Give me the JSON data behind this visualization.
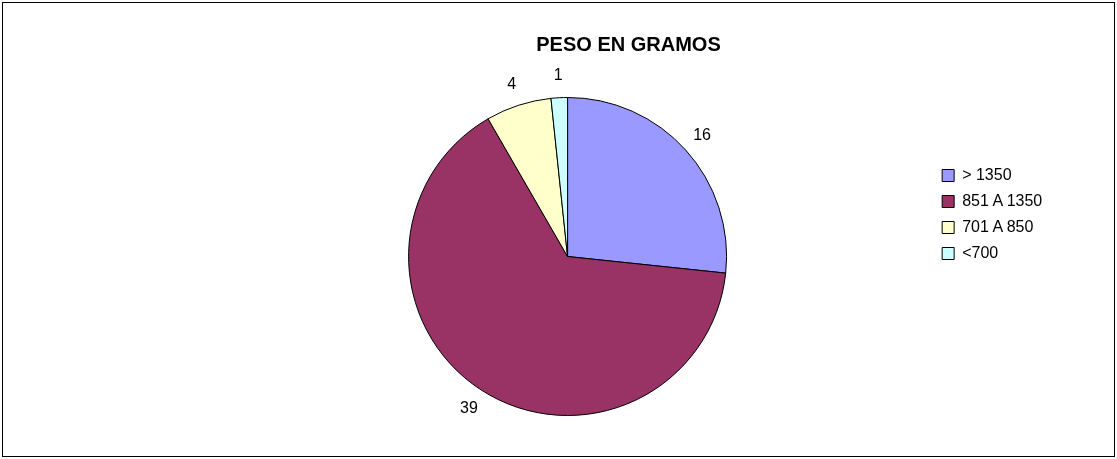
{
  "chart_data": {
    "type": "pie",
    "title": "PESO EN GRAMOS",
    "categories": [
      "> 1350",
      "851 A 1350",
      "701 A 850",
      "<700"
    ],
    "values": [
      16,
      39,
      4,
      1
    ],
    "colors": [
      "#9999ff",
      "#993366",
      "#ffffcc",
      "#ccffff"
    ],
    "data_labels": true,
    "legend": "right"
  }
}
